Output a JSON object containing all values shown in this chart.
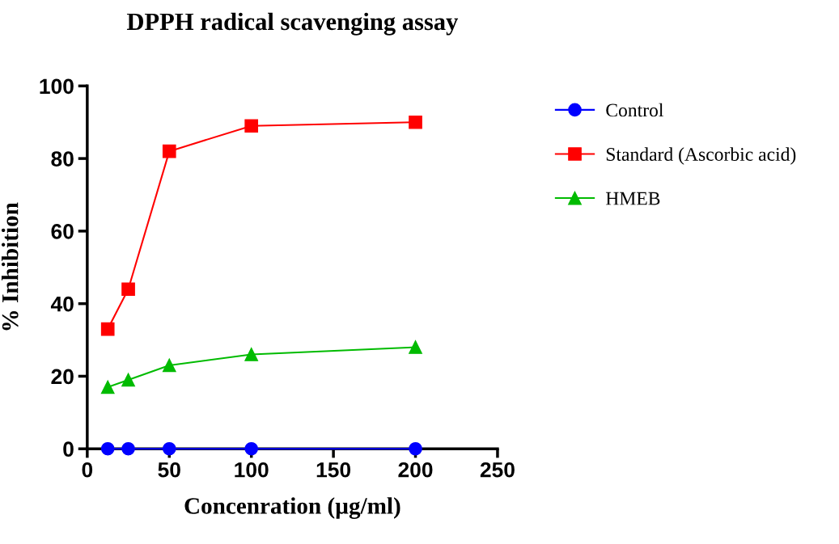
{
  "chart_data": {
    "type": "line",
    "title": "DPPH radical scavenging assay",
    "xlabel": "Concenration (µg/ml)",
    "ylabel": "% Inhibition",
    "x": [
      12.5,
      25,
      50,
      100,
      200
    ],
    "series": [
      {
        "name": "Control",
        "color": "#0000ff",
        "marker": "circle",
        "values": [
          0,
          0,
          0,
          0,
          0
        ]
      },
      {
        "name": "Standard (Ascorbic acid)",
        "color": "#ff0000",
        "marker": "square",
        "values": [
          33,
          44,
          82,
          89,
          90
        ]
      },
      {
        "name": "HMEB",
        "color": "#00bb00",
        "marker": "triangle",
        "values": [
          17,
          19,
          23,
          26,
          28
        ]
      }
    ],
    "xlim": [
      0,
      250
    ],
    "xticks": [
      0,
      50,
      100,
      150,
      200,
      250
    ],
    "ylim": [
      0,
      100
    ],
    "yticks": [
      0,
      20,
      40,
      60,
      80,
      100
    ],
    "grid": false,
    "legend": "right",
    "line_style": "solid"
  }
}
